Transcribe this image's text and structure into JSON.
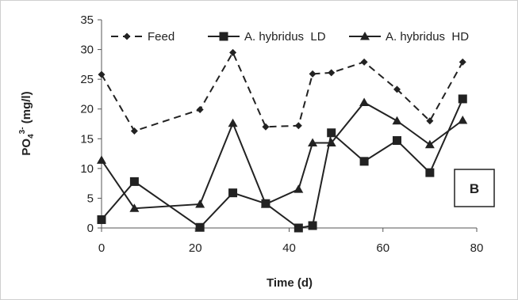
{
  "chart_data": {
    "type": "line",
    "xlabel": "Time (d)",
    "ylabel_main": "PO",
    "ylabel_sub": "4",
    "ylabel_sup": "3-",
    "ylabel_unit": " (mg/l)",
    "panel_label": "B",
    "xlim": [
      0,
      80
    ],
    "ylim": [
      0,
      35
    ],
    "xticks": [
      0,
      20,
      40,
      60,
      80
    ],
    "yticks": [
      0,
      5,
      10,
      15,
      20,
      25,
      30,
      35
    ],
    "grid": "none",
    "legend_position": "top",
    "series": [
      {
        "name": "Feed",
        "style": "dashed",
        "marker": "diamond",
        "color": "#222222",
        "x": [
          0,
          7,
          21,
          28,
          35,
          42,
          45,
          49,
          56,
          63,
          70,
          77
        ],
        "y": [
          25.8,
          16.3,
          19.9,
          29.5,
          17.0,
          17.2,
          25.9,
          26.1,
          27.9,
          23.3,
          18.0,
          27.9
        ]
      },
      {
        "name": "A. hybridus  LD",
        "style": "solid",
        "marker": "square",
        "color": "#222222",
        "x": [
          0,
          7,
          21,
          28,
          35,
          42,
          45,
          49,
          56,
          63,
          70,
          77
        ],
        "y": [
          1.4,
          7.8,
          0.1,
          5.9,
          4.1,
          0.0,
          0.4,
          16.0,
          11.2,
          14.7,
          9.3,
          21.7
        ]
      },
      {
        "name": "A. hybridus  HD",
        "style": "solid",
        "marker": "triangle",
        "color": "#222222",
        "x": [
          0,
          7,
          21,
          28,
          35,
          42,
          45,
          49,
          56,
          63,
          70,
          77
        ],
        "y": [
          11.4,
          3.3,
          4.0,
          17.6,
          4.0,
          6.5,
          14.3,
          14.3,
          21.1,
          18.0,
          14.0,
          18.1
        ]
      }
    ]
  }
}
